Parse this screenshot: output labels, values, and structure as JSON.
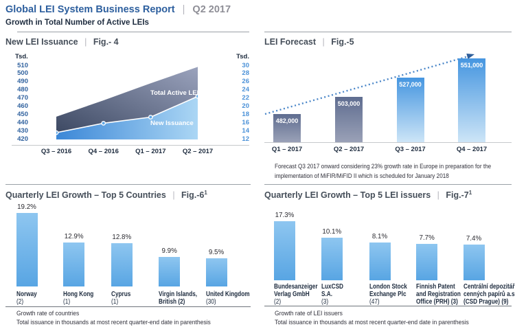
{
  "header": {
    "title": "Global LEI System Business Report",
    "separator": "|",
    "period": "Q2 2017",
    "subtitle": "Growth in Total Number of Active LEIs"
  },
  "ui": {
    "pipe": "|"
  },
  "colors": {
    "brand_blue": "#2d5f9e",
    "header_gray": "#8e8e96",
    "pipe_gray": "#b4b4bc",
    "dark_navy": "#1d2b3e",
    "title_slate": "#454e59",
    "divider_gray": "#9aa0a6",
    "baseline_gray": "#c6c8cb",
    "inner_divider": "#6e747c",
    "left_axis_blue": "#32639f",
    "right_axis_blue": "#4c92d8",
    "caption_dark": "#30303a",
    "pct_dark": "#2b2b31",
    "area_dark_start": "#3d4963",
    "area_dark_end": "#9ba3bd",
    "area_light_start": "#3b87d7",
    "area_light_end": "#abd6f4",
    "marker_fill": "#5fa7e6",
    "line_white": "#ffffff",
    "bar_dark_top": "#5f6d90",
    "bar_dark_bottom": "#9aa1b7",
    "bar_blue_top": "#4696e0",
    "bar_blue_bottom": "#cde5f7",
    "bar_sky_top": "#8ec6f0",
    "bar_sky_bottom": "#58a5e3",
    "dotted_line": "#4a86c8",
    "arrow_blue": "#2f5f9b"
  },
  "chart_data": [
    {
      "id": "fig4",
      "type": "area",
      "title": "New LEI Issuance",
      "fig": "Fig.- 4",
      "x_labels": [
        "Q3 – 2016",
        "Q4 – 2016",
        "Q1 – 2017",
        "Q2 – 2017"
      ],
      "left_axis": {
        "unit": "Tsd.",
        "ticks": [
          510,
          500,
          490,
          480,
          470,
          460,
          450,
          440,
          430,
          420
        ],
        "range": [
          420,
          510
        ]
      },
      "right_axis": {
        "unit": "Tsd.",
        "ticks": [
          30,
          28,
          26,
          24,
          22,
          20,
          18,
          16,
          14,
          12
        ],
        "range": [
          12,
          30
        ]
      },
      "series": [
        {
          "name": "Total Active LEIs",
          "axis": "left",
          "values": [
            447,
            467,
            488,
            508
          ]
        },
        {
          "name": "New Issuance",
          "axis": "right",
          "values": [
            13.5,
            15.8,
            17.3,
            22.4
          ]
        }
      ]
    },
    {
      "id": "fig5",
      "type": "bar",
      "title": "LEI Forecast",
      "fig": "Fig.-5",
      "categories": [
        "Q1 – 2017",
        "Q2 – 2017",
        "Q3 – 2017",
        "Q4 – 2017"
      ],
      "values": [
        482000,
        503000,
        527000,
        551000
      ],
      "labels": [
        "482,000",
        "503,000",
        "527,000",
        "551,000"
      ],
      "bar_styles": [
        "dark",
        "dark",
        "light",
        "light"
      ],
      "trend_arrow": true,
      "caption": "Forecast Q3 2017 onward considering 23% growth rate in Europe in preparation for the implementation of MiFIR/MiFID II which is scheduled for January 2018"
    },
    {
      "id": "fig6",
      "type": "bar",
      "title": "Quarterly LEI Growth – Top 5 Countries",
      "fig": "Fig.-6",
      "fig_sup": "1",
      "categories_lines": [
        [
          "Norway",
          "(2)"
        ],
        [
          "Hong Kong",
          "(1)"
        ],
        [
          "Cyprus",
          "(1)"
        ],
        [
          "Virgin Islands,",
          "British (2)"
        ],
        [
          "United Kingdom",
          "(30)"
        ]
      ],
      "values": [
        19.2,
        12.9,
        12.8,
        9.9,
        9.5
      ],
      "labels": [
        "19.2%",
        "12.9%",
        "12.8%",
        "9.9%",
        "9.5%"
      ],
      "captions": [
        "Growth rate of countries",
        "Total issuance in thousands at most recent quarter-end date in parenthesis"
      ]
    },
    {
      "id": "fig7",
      "type": "bar",
      "title": "Quarterly LEI Growth – Top 5 LEI issuers",
      "fig": "Fig.-7",
      "fig_sup": "1",
      "categories_lines": [
        [
          "Bundesanzeiger",
          "Verlag GmbH",
          "(2)"
        ],
        [
          "LuxCSD",
          "S.A.",
          "(3)"
        ],
        [
          "London Stock",
          "Exchange Plc",
          "(47)"
        ],
        [
          "Finnish Patent",
          "and Registration",
          "Office (PRH) (3)"
        ],
        [
          "Centrální depozitář",
          "cenných papírů a.s.",
          "(CSD Prague) (9)"
        ]
      ],
      "values": [
        17.3,
        10.1,
        8.1,
        7.7,
        7.4
      ],
      "labels": [
        "17.3%",
        "10.1%",
        "8.1%",
        "7.7%",
        "7.4%"
      ],
      "captions": [
        "Growth rate of LEI issuers",
        "Total issuance in thousands at most recent quarter-end date in parenthesis"
      ]
    }
  ]
}
